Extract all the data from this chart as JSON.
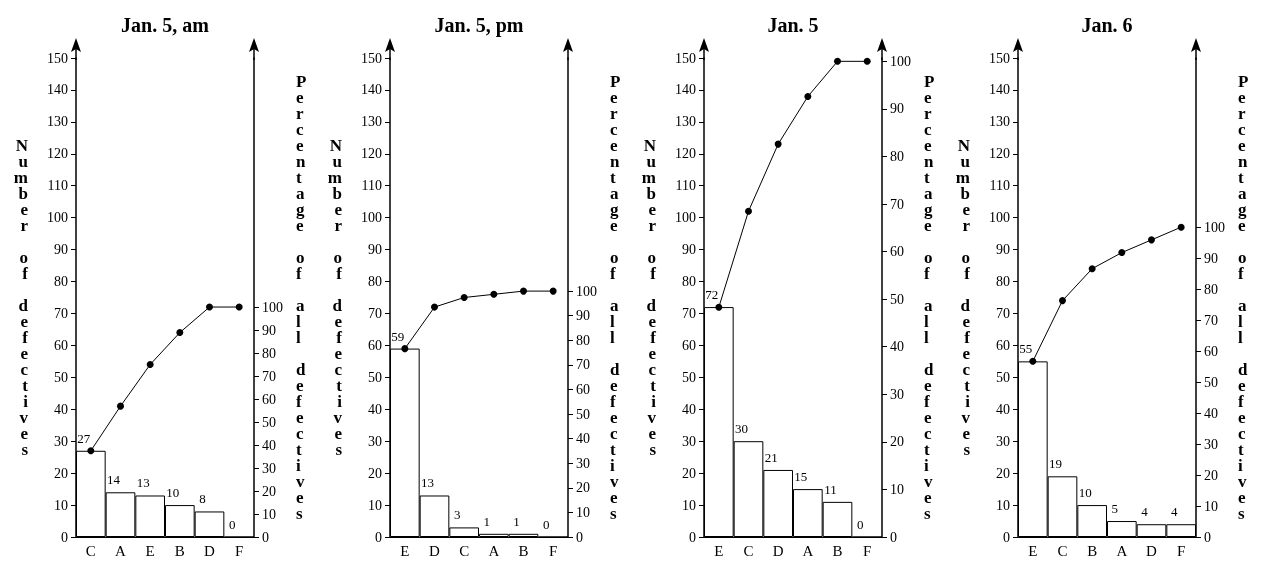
{
  "chart_data": [
    {
      "type": "bar",
      "title": "Jan. 5, am",
      "ylabel": "Number of defectives",
      "y2label": "Percentage of all defectives",
      "categories": [
        "C",
        "A",
        "E",
        "B",
        "D",
        "F"
      ],
      "ylim": [
        0,
        150
      ],
      "yticks": [
        0,
        10,
        20,
        30,
        40,
        50,
        60,
        70,
        80,
        90,
        100,
        110,
        120,
        130,
        140,
        150
      ],
      "y2lim": [
        0,
        208.3
      ],
      "y2ticks": [
        0,
        10,
        20,
        30,
        40,
        50,
        60,
        70,
        80,
        90,
        100
      ],
      "marker": "circle",
      "series": [
        {
          "type": "bar",
          "color": "#ffffff",
          "values": [
            27,
            14,
            13,
            10,
            8,
            0
          ],
          "value_labels": [
            "27",
            "14",
            "13",
            "10",
            "8",
            "0"
          ]
        },
        {
          "type": "line",
          "axis": "y2",
          "color": "#000000",
          "values": [
            37.5,
            56.9,
            75,
            88.9,
            100,
            100
          ]
        }
      ]
    },
    {
      "type": "bar",
      "title": "Jan. 5, pm",
      "ylabel": "Number of defectives",
      "y2label": "Percentage of all defectives",
      "categories": [
        "E",
        "D",
        "C",
        "A",
        "B",
        "F"
      ],
      "ylim": [
        0,
        150
      ],
      "yticks": [
        0,
        10,
        20,
        30,
        40,
        50,
        60,
        70,
        80,
        90,
        100,
        110,
        120,
        130,
        140,
        150
      ],
      "y2lim": [
        0,
        194.8
      ],
      "y2ticks": [
        0,
        10,
        20,
        30,
        40,
        50,
        60,
        70,
        80,
        90,
        100
      ],
      "marker": "circle",
      "series": [
        {
          "type": "bar",
          "color": "#ffffff",
          "values": [
            59,
            13,
            3,
            1,
            1,
            0
          ],
          "value_labels": [
            "59",
            "13",
            "3",
            "1",
            "1",
            "0"
          ]
        },
        {
          "type": "line",
          "axis": "y2",
          "color": "#000000",
          "values": [
            76.6,
            93.5,
            97.4,
            98.7,
            100,
            100
          ]
        }
      ]
    },
    {
      "type": "bar",
      "title": "Jan. 5",
      "ylabel": "Number of defectives",
      "y2label": "Percentage of all defectives",
      "categories": [
        "E",
        "C",
        "D",
        "A",
        "B",
        "F"
      ],
      "ylim": [
        0,
        150
      ],
      "yticks": [
        0,
        10,
        20,
        30,
        40,
        50,
        60,
        70,
        80,
        90,
        100,
        110,
        120,
        130,
        140,
        150
      ],
      "y2lim": [
        0,
        100.7
      ],
      "y2ticks": [
        0,
        10,
        20,
        30,
        40,
        50,
        60,
        70,
        80,
        90,
        100
      ],
      "marker": "circle",
      "series": [
        {
          "type": "bar",
          "color": "#ffffff",
          "values": [
            72,
            30,
            21,
            15,
            11,
            0
          ],
          "value_labels": [
            "72",
            "30",
            "21",
            "15",
            "11",
            "0"
          ]
        },
        {
          "type": "line",
          "axis": "y2",
          "color": "#000000",
          "values": [
            48.3,
            68.5,
            82.6,
            92.6,
            100,
            100
          ]
        }
      ]
    },
    {
      "type": "bar",
      "title": "Jan. 6",
      "ylabel": "Number of defectives",
      "y2label": "Percentage of all defectives",
      "categories": [
        "E",
        "C",
        "B",
        "A",
        "D",
        "F"
      ],
      "ylim": [
        0,
        150
      ],
      "yticks": [
        0,
        10,
        20,
        30,
        40,
        50,
        60,
        70,
        80,
        90,
        100,
        110,
        120,
        130,
        140,
        150
      ],
      "y2lim": [
        0,
        154.6
      ],
      "y2ticks": [
        0,
        10,
        20,
        30,
        40,
        50,
        60,
        70,
        80,
        90,
        100
      ],
      "marker": "circle",
      "series": [
        {
          "type": "bar",
          "color": "#ffffff",
          "values": [
            55,
            19,
            10,
            5,
            4,
            4
          ],
          "value_labels": [
            "55",
            "19",
            "10",
            "5",
            "4",
            "4"
          ]
        },
        {
          "type": "line",
          "axis": "y2",
          "color": "#000000",
          "values": [
            56.7,
            76.3,
            86.6,
            91.8,
            95.9,
            100
          ]
        }
      ]
    }
  ]
}
